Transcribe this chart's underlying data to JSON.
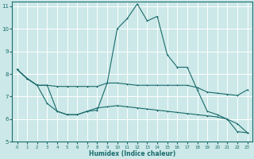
{
  "xlabel": "Humidex (Indice chaleur)",
  "xlim": [
    -0.5,
    23.5
  ],
  "ylim": [
    5,
    11.2
  ],
  "yticks": [
    5,
    6,
    7,
    8,
    9,
    10,
    11
  ],
  "xticks": [
    0,
    1,
    2,
    3,
    4,
    5,
    6,
    7,
    8,
    9,
    10,
    11,
    12,
    13,
    14,
    15,
    16,
    17,
    18,
    19,
    20,
    21,
    22,
    23
  ],
  "bg_color": "#cce8e8",
  "grid_color": "#ffffff",
  "line_color": "#1a6b6b",
  "line1_x": [
    0,
    1,
    2,
    3,
    4,
    5,
    6,
    7,
    8,
    9,
    10,
    11,
    12,
    13,
    14,
    15,
    16,
    17,
    18,
    19,
    20,
    21,
    22,
    23
  ],
  "line1_y": [
    8.2,
    7.8,
    7.5,
    7.5,
    6.35,
    6.2,
    6.2,
    6.35,
    6.4,
    7.6,
    10.0,
    10.45,
    11.1,
    10.35,
    10.55,
    8.85,
    8.3,
    8.3,
    7.3,
    6.35,
    6.2,
    6.0,
    5.45,
    5.4
  ],
  "line2_x": [
    0,
    1,
    2,
    3,
    4,
    5,
    6,
    7,
    8,
    9,
    10,
    11,
    12,
    13,
    14,
    15,
    16,
    17,
    18,
    19,
    20,
    21,
    22,
    23
  ],
  "line2_y": [
    8.2,
    7.8,
    7.5,
    7.5,
    7.45,
    7.45,
    7.45,
    7.45,
    7.45,
    7.6,
    7.6,
    7.55,
    7.5,
    7.5,
    7.5,
    7.5,
    7.5,
    7.5,
    7.4,
    7.2,
    7.15,
    7.1,
    7.05,
    7.3
  ],
  "line3_x": [
    0,
    1,
    2,
    3,
    4,
    5,
    6,
    7,
    8,
    9,
    10,
    11,
    12,
    13,
    14,
    15,
    16,
    17,
    18,
    19,
    20,
    21,
    22,
    23
  ],
  "line3_y": [
    8.2,
    7.8,
    7.5,
    6.7,
    6.35,
    6.2,
    6.2,
    6.35,
    6.5,
    6.55,
    6.6,
    6.55,
    6.5,
    6.45,
    6.4,
    6.35,
    6.3,
    6.25,
    6.2,
    6.15,
    6.1,
    6.0,
    5.8,
    5.4
  ]
}
